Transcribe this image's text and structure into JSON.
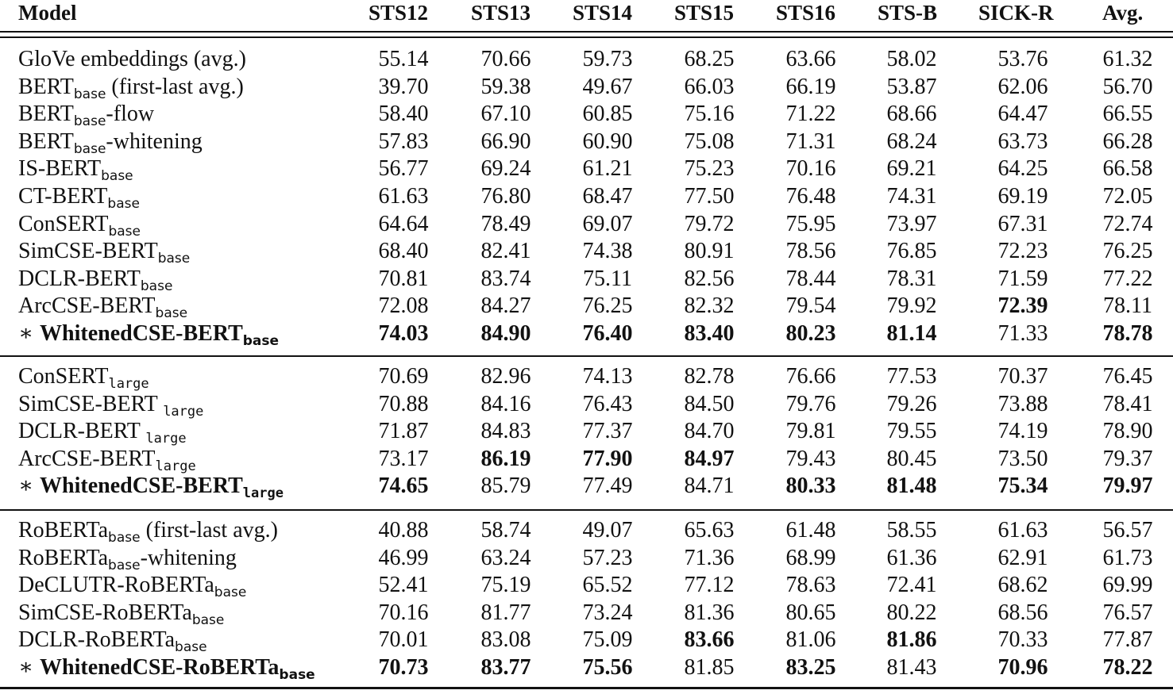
{
  "columns": [
    "Model",
    "STS12",
    "STS13",
    "STS14",
    "STS15",
    "STS16",
    "STS-B",
    "SICK-R",
    "Avg."
  ],
  "groups": [
    {
      "rows": [
        {
          "pre": "GloVe embeddings (avg.)",
          "sub": "",
          "post": "",
          "bold_name": false,
          "values": [
            "55.14",
            "70.66",
            "59.73",
            "68.25",
            "63.66",
            "58.02",
            "53.76",
            "61.32"
          ],
          "bold": []
        },
        {
          "pre": "BERT",
          "sub": "base",
          "post": " (first-last avg.)",
          "bold_name": false,
          "values": [
            "39.70",
            "59.38",
            "49.67",
            "66.03",
            "66.19",
            "53.87",
            "62.06",
            "56.70"
          ],
          "bold": []
        },
        {
          "pre": "BERT",
          "sub": "base",
          "post": "-flow",
          "bold_name": false,
          "values": [
            "58.40",
            "67.10",
            "60.85",
            "75.16",
            "71.22",
            "68.66",
            "64.47",
            "66.55"
          ],
          "bold": []
        },
        {
          "pre": "BERT",
          "sub": "base",
          "post": "-whitening",
          "bold_name": false,
          "values": [
            "57.83",
            "66.90",
            "60.90",
            "75.08",
            "71.31",
            "68.24",
            "63.73",
            "66.28"
          ],
          "bold": []
        },
        {
          "pre": "IS-BERT",
          "sub": "base",
          "post": "",
          "bold_name": false,
          "values": [
            "56.77",
            "69.24",
            "61.21",
            "75.23",
            "70.16",
            "69.21",
            "64.25",
            "66.58"
          ],
          "bold": []
        },
        {
          "pre": "CT-BERT",
          "sub": "base",
          "post": "",
          "bold_name": false,
          "values": [
            "61.63",
            "76.80",
            "68.47",
            "77.50",
            "76.48",
            "74.31",
            "69.19",
            "72.05"
          ],
          "bold": []
        },
        {
          "pre": "ConSERT",
          "sub": "base",
          "post": "",
          "bold_name": false,
          "values": [
            "64.64",
            "78.49",
            "69.07",
            "79.72",
            "75.95",
            "73.97",
            "67.31",
            "72.74"
          ],
          "bold": []
        },
        {
          "pre": "SimCSE-BERT",
          "sub": "base",
          "post": "",
          "bold_name": false,
          "values": [
            "68.40",
            "82.41",
            "74.38",
            "80.91",
            "78.56",
            "76.85",
            "72.23",
            "76.25"
          ],
          "bold": []
        },
        {
          "pre": "DCLR-BERT",
          "sub": "base",
          "post": "",
          "bold_name": false,
          "values": [
            "70.81",
            "83.74",
            "75.11",
            "82.56",
            "78.44",
            "78.31",
            "71.59",
            "77.22"
          ],
          "bold": []
        },
        {
          "pre": "ArcCSE-BERT",
          "sub": "base",
          "post": "",
          "bold_name": false,
          "values": [
            "72.08",
            "84.27",
            "76.25",
            "82.32",
            "79.54",
            "79.92",
            "72.39",
            "78.11"
          ],
          "bold": [
            6
          ]
        },
        {
          "pre": "WhitenedCSE-BERT",
          "sub": "base",
          "post": "",
          "star": "∗",
          "bold_name": true,
          "values": [
            "74.03",
            "84.90",
            "76.40",
            "83.40",
            "80.23",
            "81.14",
            "71.33",
            "78.78"
          ],
          "bold": [
            0,
            1,
            2,
            3,
            4,
            5,
            7
          ]
        }
      ]
    },
    {
      "rows": [
        {
          "pre": "ConSERT",
          "sub": "large",
          "post": "",
          "bold_name": false,
          "values": [
            "70.69",
            "82.96",
            "74.13",
            "82.78",
            "76.66",
            "77.53",
            "70.37",
            "76.45"
          ],
          "bold": []
        },
        {
          "pre": "SimCSE-BERT ",
          "sub": "large",
          "post": "",
          "bold_name": false,
          "values": [
            "70.88",
            "84.16",
            "76.43",
            "84.50",
            "79.76",
            "79.26",
            "73.88",
            "78.41"
          ],
          "bold": []
        },
        {
          "pre": "DCLR-BERT ",
          "sub": "large",
          "post": "",
          "bold_name": false,
          "values": [
            "71.87",
            "84.83",
            "77.37",
            "84.70",
            "79.81",
            "79.55",
            "74.19",
            "78.90"
          ],
          "bold": []
        },
        {
          "pre": "ArcCSE-BERT",
          "sub": "large",
          "post": "",
          "bold_name": false,
          "values": [
            "73.17",
            "86.19",
            "77.90",
            "84.97",
            "79.43",
            "80.45",
            "73.50",
            "79.37"
          ],
          "bold": [
            1,
            2,
            3
          ]
        },
        {
          "pre": "WhitenedCSE-BERT",
          "sub": "large",
          "post": "",
          "star": "∗",
          "bold_name": true,
          "values": [
            "74.65",
            "85.79",
            "77.49",
            "84.71",
            "80.33",
            "81.48",
            "75.34",
            "79.97"
          ],
          "bold": [
            0,
            4,
            5,
            6,
            7
          ]
        }
      ]
    },
    {
      "rows": [
        {
          "pre": "RoBERTa",
          "sub": "base",
          "post": " (first-last avg.)",
          "bold_name": false,
          "values": [
            "40.88",
            "58.74",
            "49.07",
            "65.63",
            "61.48",
            "58.55",
            "61.63",
            "56.57"
          ],
          "bold": []
        },
        {
          "pre": "RoBERTa",
          "sub": "base",
          "post": "-whitening",
          "bold_name": false,
          "values": [
            "46.99",
            "63.24",
            "57.23",
            "71.36",
            "68.99",
            "61.36",
            "62.91",
            "61.73"
          ],
          "bold": []
        },
        {
          "pre": "DeCLUTR-RoBERTa",
          "sub": "base",
          "post": "",
          "bold_name": false,
          "values": [
            "52.41",
            "75.19",
            "65.52",
            "77.12",
            "78.63",
            "72.41",
            "68.62",
            "69.99"
          ],
          "bold": []
        },
        {
          "pre": "SimCSE-RoBERTa",
          "sub": "base",
          "post": "",
          "bold_name": false,
          "values": [
            "70.16",
            "81.77",
            "73.24",
            "81.36",
            "80.65",
            "80.22",
            "68.56",
            "76.57"
          ],
          "bold": []
        },
        {
          "pre": "DCLR-RoBERTa",
          "sub": "base",
          "post": "",
          "bold_name": false,
          "values": [
            "70.01",
            "83.08",
            "75.09",
            "83.66",
            "81.06",
            "81.86",
            "70.33",
            "77.87"
          ],
          "bold": [
            3,
            5
          ]
        },
        {
          "pre": "WhitenedCSE-RoBERTa",
          "sub": "base",
          "post": "",
          "star": "∗",
          "bold_name": true,
          "values": [
            "70.73",
            "83.77",
            "75.56",
            "81.85",
            "83.25",
            "81.43",
            "70.96",
            "78.22"
          ],
          "bold": [
            0,
            1,
            2,
            4,
            6,
            7
          ]
        }
      ]
    }
  ]
}
